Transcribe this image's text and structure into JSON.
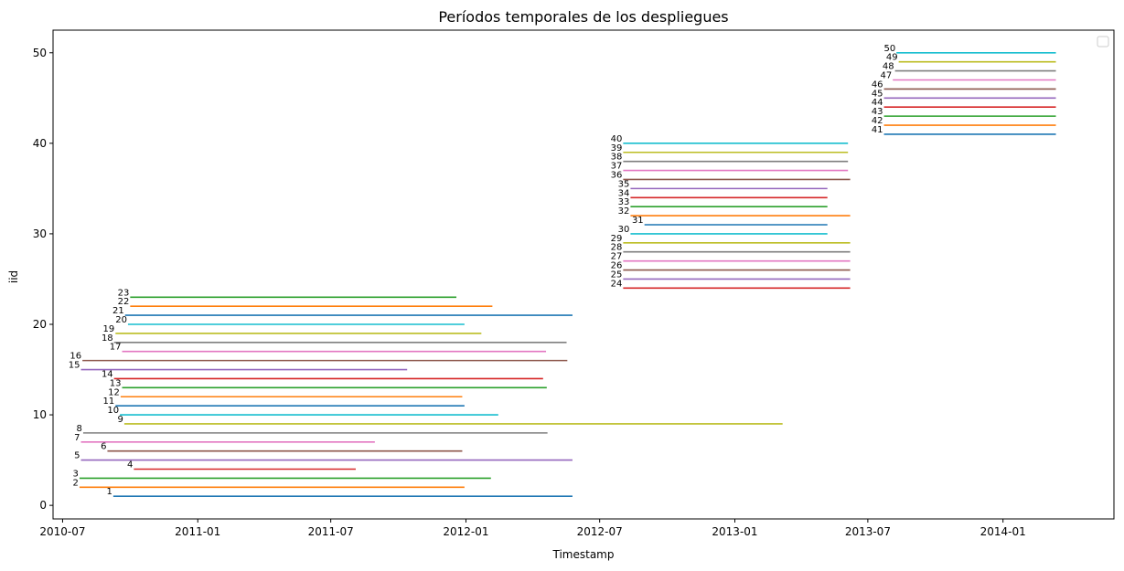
{
  "chart_data": {
    "type": "gantt-line",
    "title": "Períodos temporales de los despliegues",
    "xlabel": "Timestamp",
    "ylabel": "iid",
    "xlim": [
      "2010-06-18",
      "2014-06-01"
    ],
    "ylim": [
      -1.5,
      52.5
    ],
    "x_ticks": [
      "2010-07",
      "2011-01",
      "2011-07",
      "2012-01",
      "2012-07",
      "2013-01",
      "2013-07",
      "2014-01"
    ],
    "y_ticks": [
      0,
      10,
      20,
      30,
      40,
      50
    ],
    "legend": "top-right",
    "grid": false,
    "series": [
      {
        "iid": 1,
        "start": "2010-09-08",
        "end": "2012-05-25",
        "color": "#1f77b4"
      },
      {
        "iid": 2,
        "start": "2010-07-24",
        "end": "2011-12-30",
        "color": "#ff7f0e"
      },
      {
        "iid": 3,
        "start": "2010-07-24",
        "end": "2012-02-04",
        "color": "#2ca02c"
      },
      {
        "iid": 4,
        "start": "2010-10-06",
        "end": "2011-08-04",
        "color": "#d62728"
      },
      {
        "iid": 5,
        "start": "2010-07-26",
        "end": "2012-05-25",
        "color": "#9467bd"
      },
      {
        "iid": 6,
        "start": "2010-08-31",
        "end": "2011-12-27",
        "color": "#8c564b"
      },
      {
        "iid": 7,
        "start": "2010-07-26",
        "end": "2011-08-30",
        "color": "#e377c2"
      },
      {
        "iid": 8,
        "start": "2010-07-29",
        "end": "2012-04-21",
        "color": "#7f7f7f"
      },
      {
        "iid": 9,
        "start": "2010-09-23",
        "end": "2013-03-07",
        "color": "#bcbd22"
      },
      {
        "iid": 10,
        "start": "2010-09-17",
        "end": "2012-02-14",
        "color": "#17becf"
      },
      {
        "iid": 11,
        "start": "2010-09-11",
        "end": "2011-12-30",
        "color": "#1f77b4"
      },
      {
        "iid": 12,
        "start": "2010-09-18",
        "end": "2011-12-27",
        "color": "#ff7f0e"
      },
      {
        "iid": 13,
        "start": "2010-09-20",
        "end": "2012-04-20",
        "color": "#2ca02c"
      },
      {
        "iid": 14,
        "start": "2010-09-09",
        "end": "2012-04-15",
        "color": "#d62728"
      },
      {
        "iid": 15,
        "start": "2010-07-26",
        "end": "2011-10-13",
        "color": "#9467bd"
      },
      {
        "iid": 16,
        "start": "2010-07-28",
        "end": "2012-05-18",
        "color": "#8c564b"
      },
      {
        "iid": 17,
        "start": "2010-09-20",
        "end": "2012-04-19",
        "color": "#e377c2"
      },
      {
        "iid": 18,
        "start": "2010-09-09",
        "end": "2012-05-17",
        "color": "#7f7f7f"
      },
      {
        "iid": 19,
        "start": "2010-09-11",
        "end": "2012-01-22",
        "color": "#bcbd22"
      },
      {
        "iid": 20,
        "start": "2010-09-28",
        "end": "2011-12-30",
        "color": "#17becf"
      },
      {
        "iid": 21,
        "start": "2010-09-24",
        "end": "2012-05-25",
        "color": "#1f77b4"
      },
      {
        "iid": 22,
        "start": "2010-10-01",
        "end": "2012-02-06",
        "color": "#ff7f0e"
      },
      {
        "iid": 23,
        "start": "2010-10-01",
        "end": "2011-12-19",
        "color": "#2ca02c"
      },
      {
        "iid": 24,
        "start": "2012-08-02",
        "end": "2013-06-07",
        "color": "#d62728"
      },
      {
        "iid": 25,
        "start": "2012-08-02",
        "end": "2013-06-07",
        "color": "#9467bd"
      },
      {
        "iid": 26,
        "start": "2012-08-02",
        "end": "2013-06-07",
        "color": "#8c564b"
      },
      {
        "iid": 27,
        "start": "2012-08-02",
        "end": "2013-06-07",
        "color": "#e377c2"
      },
      {
        "iid": 28,
        "start": "2012-08-02",
        "end": "2013-06-07",
        "color": "#7f7f7f"
      },
      {
        "iid": 29,
        "start": "2012-08-02",
        "end": "2013-06-07",
        "color": "#bcbd22"
      },
      {
        "iid": 30,
        "start": "2012-08-12",
        "end": "2013-05-07",
        "color": "#17becf"
      },
      {
        "iid": 31,
        "start": "2012-08-31",
        "end": "2013-05-07",
        "color": "#1f77b4"
      },
      {
        "iid": 32,
        "start": "2012-08-12",
        "end": "2013-06-07",
        "color": "#ff7f0e"
      },
      {
        "iid": 33,
        "start": "2012-08-12",
        "end": "2013-05-07",
        "color": "#2ca02c"
      },
      {
        "iid": 34,
        "start": "2012-08-12",
        "end": "2013-05-07",
        "color": "#d62728"
      },
      {
        "iid": 35,
        "start": "2012-08-12",
        "end": "2013-05-07",
        "color": "#9467bd"
      },
      {
        "iid": 36,
        "start": "2012-08-02",
        "end": "2013-06-07",
        "color": "#8c564b"
      },
      {
        "iid": 37,
        "start": "2012-08-02",
        "end": "2013-06-04",
        "color": "#e377c2"
      },
      {
        "iid": 38,
        "start": "2012-08-02",
        "end": "2013-06-04",
        "color": "#7f7f7f"
      },
      {
        "iid": 39,
        "start": "2012-08-02",
        "end": "2013-06-04",
        "color": "#bcbd22"
      },
      {
        "iid": 40,
        "start": "2012-08-02",
        "end": "2013-06-04",
        "color": "#17becf"
      },
      {
        "iid": 41,
        "start": "2013-07-23",
        "end": "2014-03-14",
        "color": "#1f77b4"
      },
      {
        "iid": 42,
        "start": "2013-07-23",
        "end": "2014-03-14",
        "color": "#ff7f0e"
      },
      {
        "iid": 43,
        "start": "2013-07-23",
        "end": "2014-03-14",
        "color": "#2ca02c"
      },
      {
        "iid": 44,
        "start": "2013-07-23",
        "end": "2014-03-14",
        "color": "#d62728"
      },
      {
        "iid": 45,
        "start": "2013-07-23",
        "end": "2014-03-14",
        "color": "#9467bd"
      },
      {
        "iid": 46,
        "start": "2013-07-23",
        "end": "2014-03-14",
        "color": "#8c564b"
      },
      {
        "iid": 47,
        "start": "2013-08-04",
        "end": "2014-03-14",
        "color": "#e377c2"
      },
      {
        "iid": 48,
        "start": "2013-08-07",
        "end": "2014-03-14",
        "color": "#7f7f7f"
      },
      {
        "iid": 49,
        "start": "2013-08-12",
        "end": "2014-03-14",
        "color": "#bcbd22"
      },
      {
        "iid": 50,
        "start": "2013-08-09",
        "end": "2014-03-14",
        "color": "#17becf"
      }
    ]
  }
}
